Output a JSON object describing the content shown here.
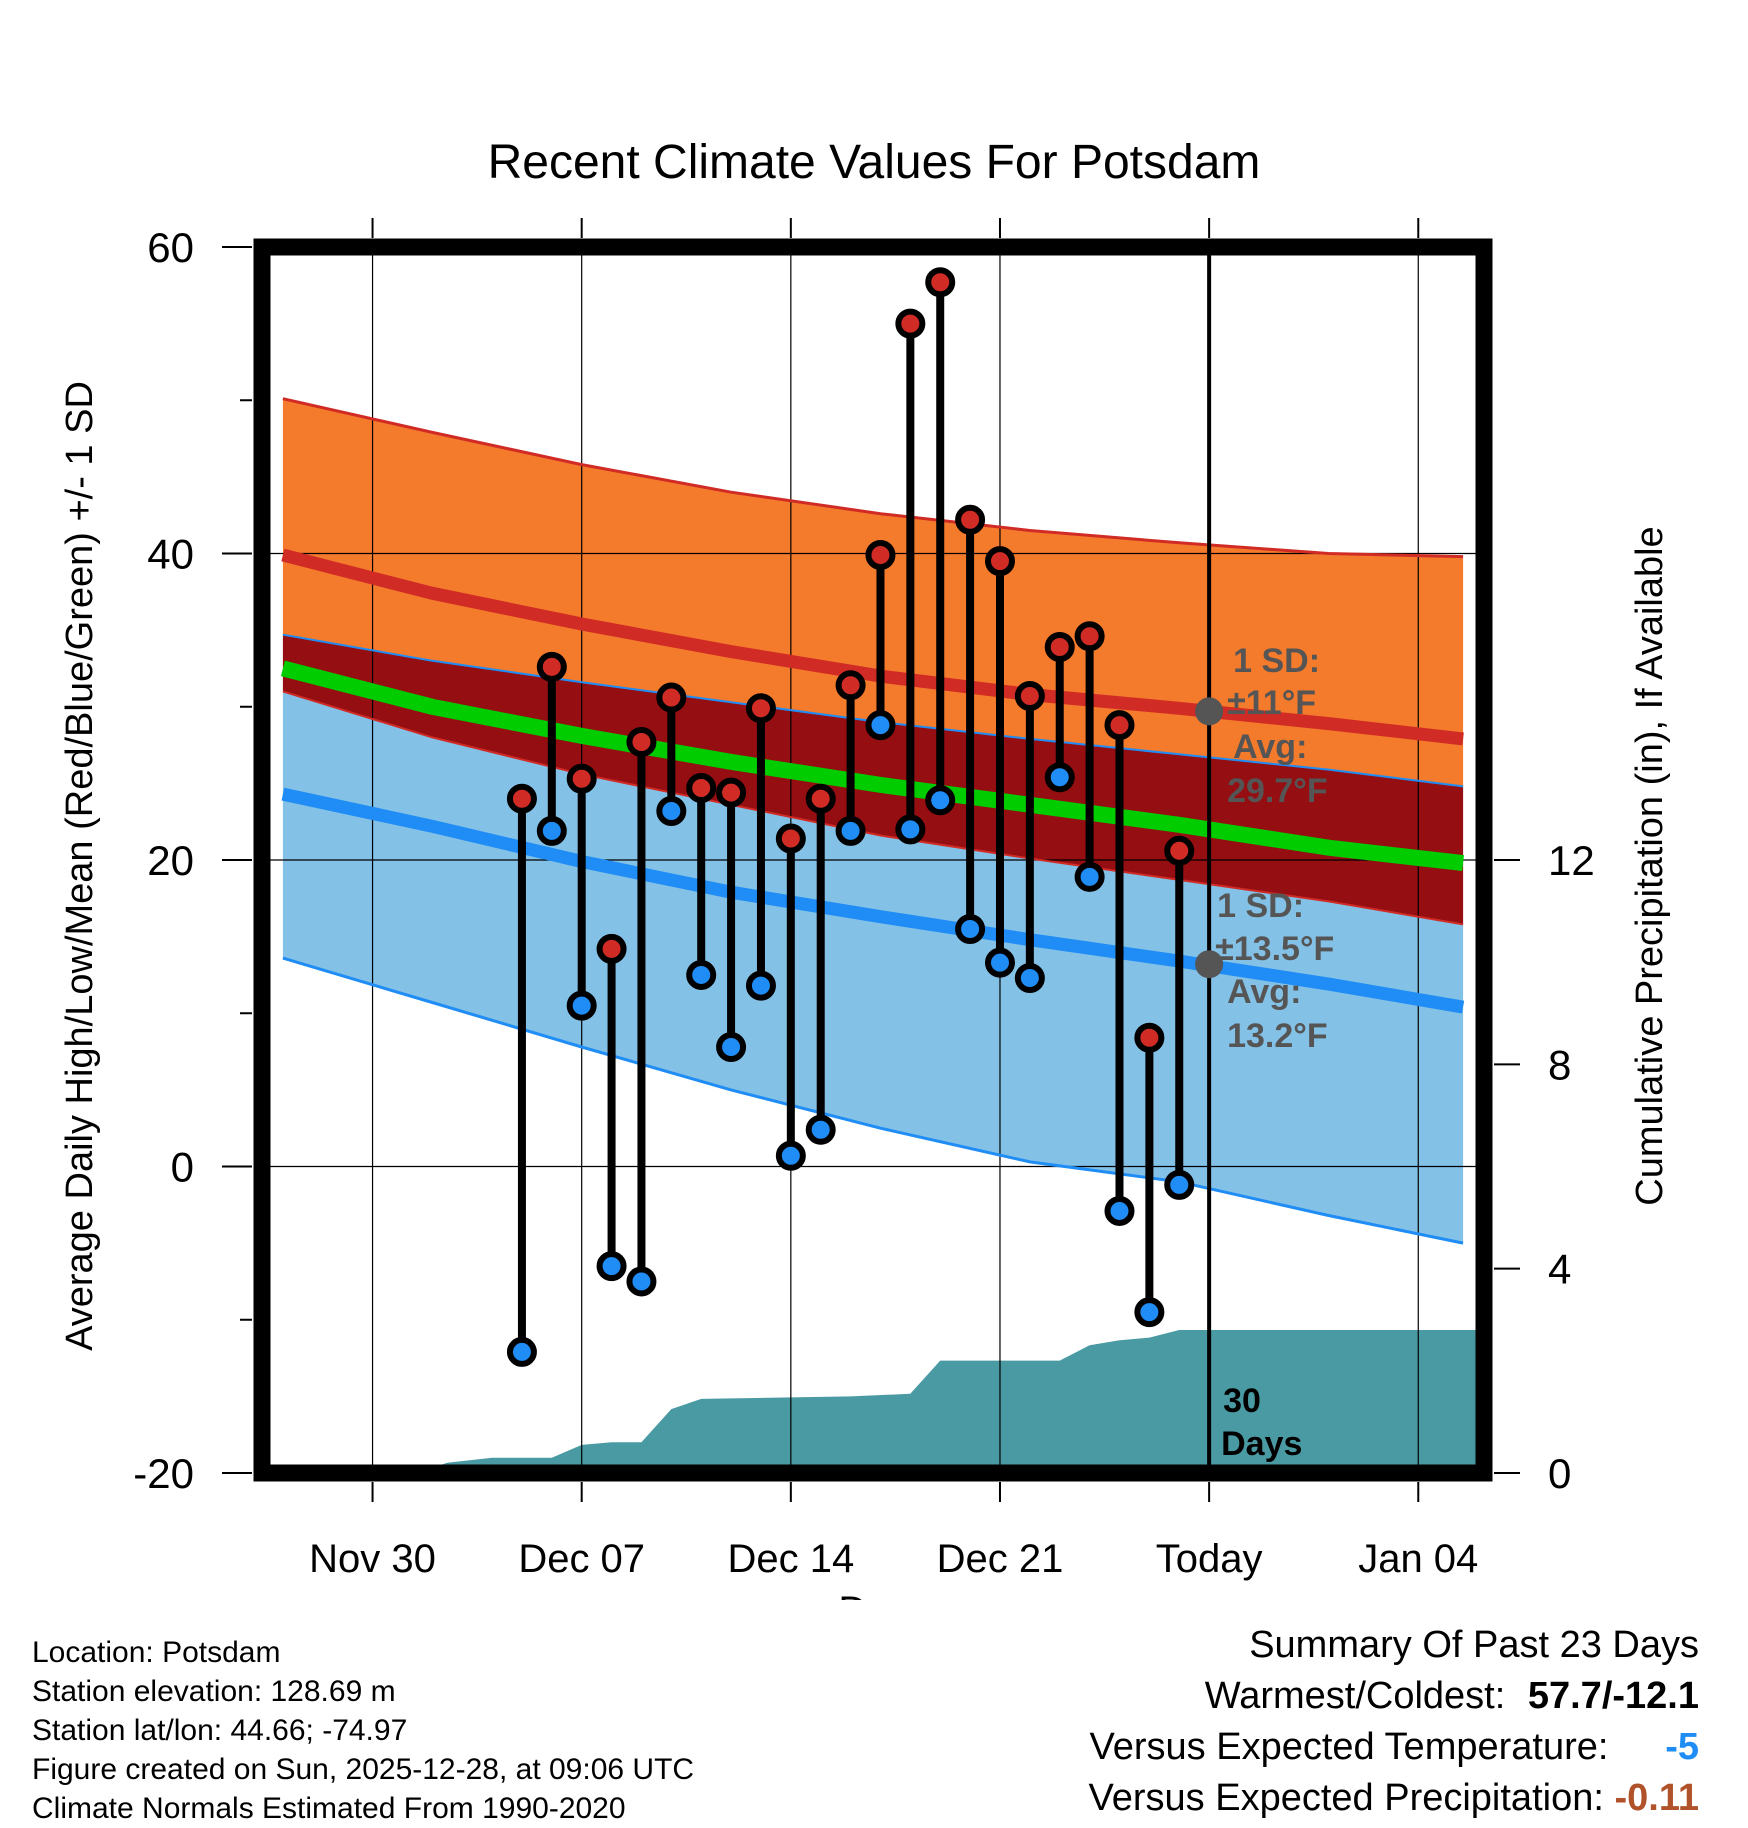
{
  "colors": {
    "high_band": "#f47a2c",
    "high_edge": "#d12b25",
    "mean_band": "#950e12",
    "mean_line": "#00cc00",
    "low_band": "#84c1e6",
    "low_edge": "#1f8df5",
    "precip": "#4a9aa3",
    "high_marker": "#d12b25",
    "low_marker": "#1f8df5",
    "annotation": "#555555",
    "temp_departure": "#1f8df5",
    "precip_departure": "#b0522a"
  },
  "chart_data": {
    "type": "line",
    "title": "Recent Climate Values For Potsdam",
    "xlabel": "Day",
    "ylabel": "Average Daily High/Low/Mean (Red/Blue/Green) +/- 1 SD",
    "y2label": "Cumulative Precipitation (in), If Available",
    "xlim": [
      -3.7,
      37.2
    ],
    "ylim": [
      -20,
      60
    ],
    "y2lim": [
      0,
      24
    ],
    "x_ticks": [
      {
        "x": 0,
        "label": "Nov 30"
      },
      {
        "x": 7,
        "label": "Dec 07"
      },
      {
        "x": 14,
        "label": "Dec 14"
      },
      {
        "x": 21,
        "label": "Dec 21"
      },
      {
        "x": 28,
        "label": "Today"
      },
      {
        "x": 35,
        "label": "Jan 04"
      }
    ],
    "y_ticks": [
      -20,
      0,
      20,
      40,
      60
    ],
    "y_minor_ticks": [
      -10,
      10,
      30,
      50
    ],
    "y2_ticks": [
      0,
      4,
      8,
      12
    ],
    "today_x": 28,
    "normal_high_upper": {
      "x": [
        -3,
        2,
        7,
        12,
        17,
        22,
        27,
        32,
        36.5
      ],
      "y": [
        50.1,
        47.9,
        45.8,
        44.0,
        42.6,
        41.5,
        40.7,
        40.0,
        39.8
      ]
    },
    "normal_high": {
      "x": [
        -3,
        2,
        7,
        12,
        17,
        22,
        27,
        32,
        36.5
      ],
      "y": [
        39.9,
        37.4,
        35.4,
        33.6,
        32.0,
        30.8,
        29.9,
        28.9,
        27.9
      ]
    },
    "normal_high_lower": {
      "x": [
        -3,
        2,
        7,
        12,
        17,
        22,
        27,
        32,
        36.5
      ],
      "y": [
        34.7,
        33.0,
        31.6,
        30.3,
        29.0,
        27.9,
        26.9,
        25.9,
        24.8
      ]
    },
    "normal_mean": {
      "x": [
        -3,
        2,
        7,
        12,
        17,
        22,
        27,
        32,
        36.5
      ],
      "y": [
        32.5,
        30.0,
        28.1,
        26.4,
        24.9,
        23.6,
        22.3,
        20.8,
        19.8
      ]
    },
    "normal_low_upper": {
      "x": [
        -3,
        2,
        7,
        12,
        17,
        22,
        27,
        32,
        36.5
      ],
      "y": [
        31.0,
        28.0,
        25.6,
        23.6,
        21.6,
        20.1,
        18.7,
        17.3,
        15.8
      ]
    },
    "normal_low": {
      "x": [
        -3,
        2,
        7,
        12,
        17,
        22,
        27,
        32,
        36.5
      ],
      "y": [
        24.3,
        22.2,
        19.9,
        17.9,
        16.3,
        14.8,
        13.4,
        11.9,
        10.4
      ]
    },
    "normal_low_lower": {
      "x": [
        -3,
        2,
        7,
        12,
        17,
        22,
        27,
        32,
        36.5
      ],
      "y": [
        13.6,
        10.7,
        7.8,
        5.0,
        2.5,
        0.3,
        -1.0,
        -3.2,
        -5.0
      ]
    },
    "precip_cumulative": {
      "x": [
        -3.7,
        1.4,
        2.0,
        2.5,
        4.0,
        6.0,
        7.0,
        8.0,
        9.0,
        10.0,
        11.0,
        16.0,
        18.0,
        19.0,
        21.0,
        22.0,
        23.0,
        24.0,
        25.0,
        26.0,
        27.0,
        28.0,
        37.2
      ],
      "y": [
        0.0,
        0.0,
        0.1,
        0.2,
        0.3,
        0.3,
        0.55,
        0.6,
        0.6,
        1.25,
        1.45,
        1.5,
        1.55,
        2.2,
        2.2,
        2.2,
        2.2,
        2.5,
        2.6,
        2.65,
        2.8,
        2.8,
        2.8
      ]
    },
    "daily": {
      "x": [
        5,
        6,
        7,
        8,
        9,
        10,
        11,
        12,
        13,
        14,
        15,
        16,
        17,
        18,
        19,
        20,
        21,
        22,
        23,
        24,
        25,
        26,
        27
      ],
      "high": [
        24.0,
        32.6,
        25.3,
        14.2,
        27.7,
        30.6,
        24.7,
        24.4,
        29.9,
        21.4,
        24.0,
        31.4,
        39.9,
        55.0,
        57.7,
        42.2,
        39.5,
        30.7,
        33.9,
        34.6,
        28.8,
        8.4,
        20.6
      ],
      "low": [
        -12.1,
        21.9,
        10.5,
        -6.5,
        -7.5,
        23.2,
        12.5,
        7.8,
        11.8,
        0.7,
        2.4,
        21.9,
        28.8,
        22.0,
        23.9,
        15.5,
        13.3,
        12.3,
        25.4,
        18.9,
        -2.9,
        -9.5,
        -1.2
      ]
    },
    "annotations": {
      "high_sd_label": "1 SD:",
      "high_sd_value": "±11°F",
      "high_avg_label": "Avg:",
      "high_avg_value": "29.7°F",
      "low_sd_label": "1 SD:",
      "low_sd_value": "±13.5°F",
      "low_avg_label": "Avg:",
      "low_avg_value": "13.2°F",
      "period_line1": "30",
      "period_line2": "Days",
      "high_avg_y": 29.7,
      "low_avg_y": 13.2
    }
  },
  "info": {
    "location": "Location: Potsdam",
    "elevation": "Station elevation: 128.69 m",
    "latlon": "Station lat/lon: 44.66; -74.97",
    "created": "Figure created on Sun, 2025-12-28, at 09:06 UTC",
    "normals": "Climate Normals Estimated From 1990-2020"
  },
  "summary": {
    "title": "Summary Of Past 23 Days",
    "warm_cold_label": "Warmest/Coldest:",
    "warm_cold_value": "57.7/-12.1",
    "temp_label": "Versus Expected Temperature:",
    "temp_value": "-5",
    "precip_label": "Versus Expected Precipitation:",
    "precip_value": "-0.11"
  }
}
